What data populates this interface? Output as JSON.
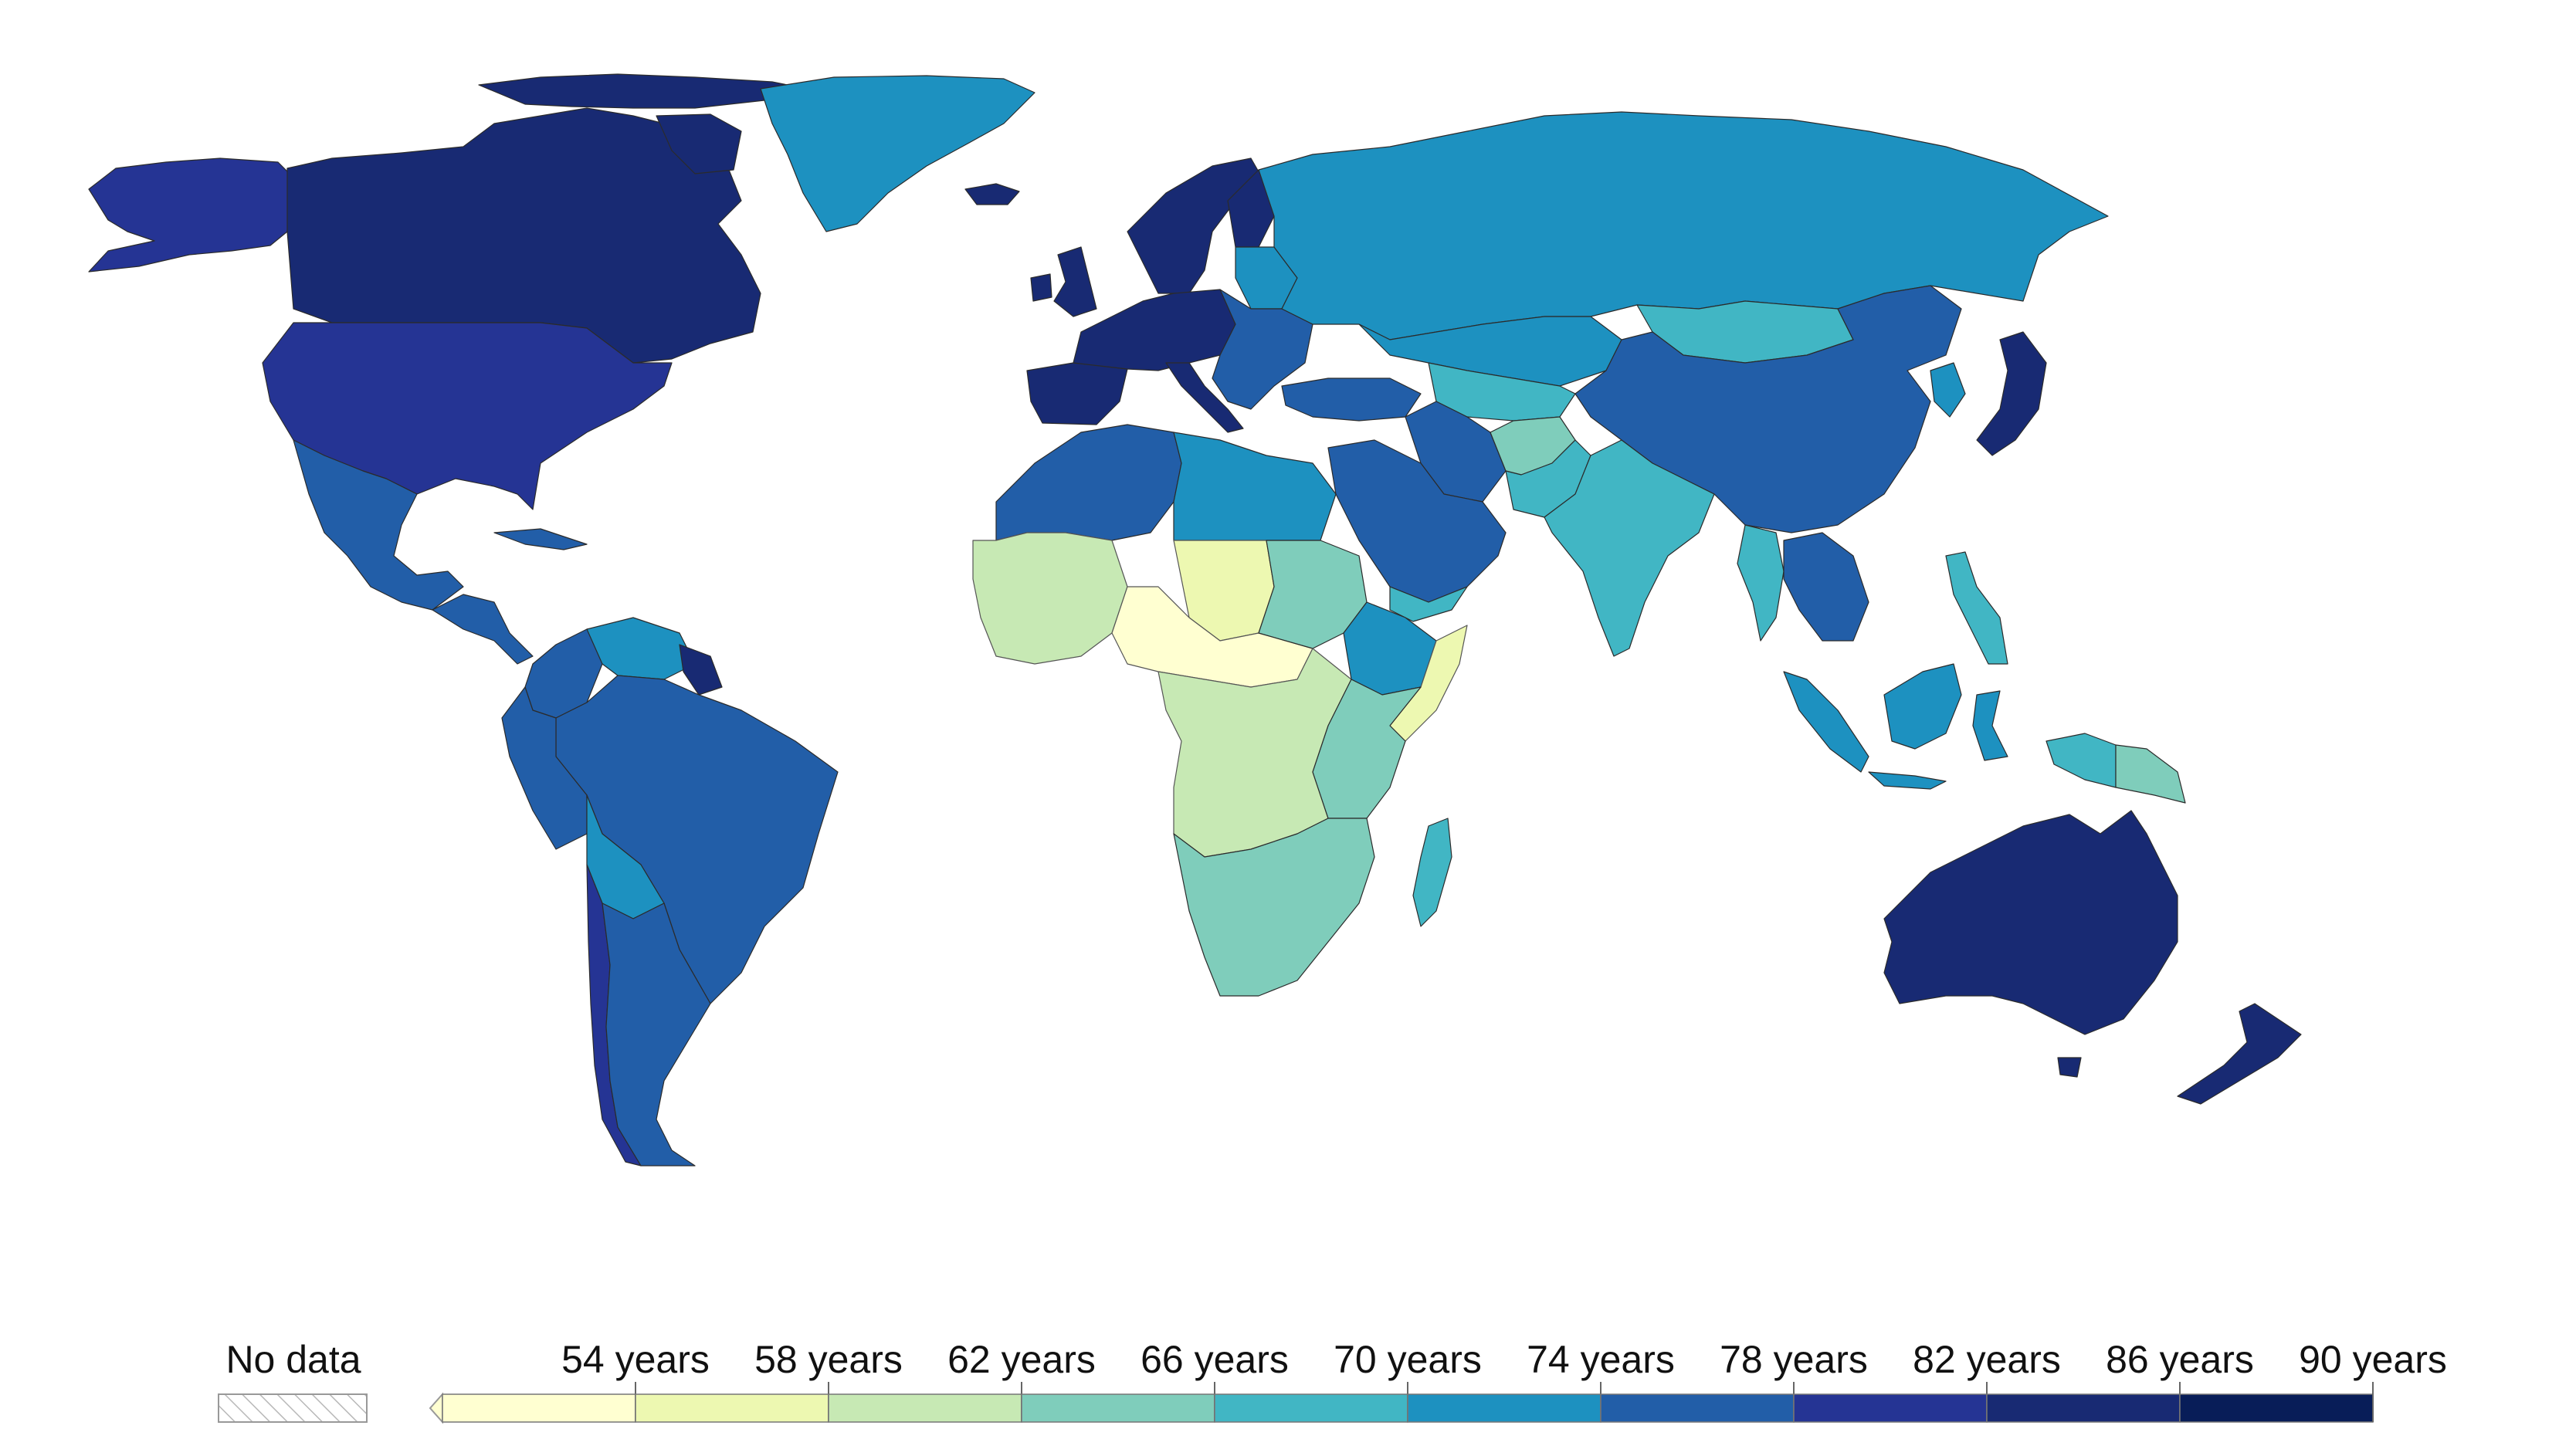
{
  "legend": {
    "no_data_label": "No data",
    "no_data_color": "#e8e8e8",
    "bins": [
      {
        "label": "54 years",
        "color": "#ffffd1"
      },
      {
        "label": "58 years",
        "color": "#edf8b1"
      },
      {
        "label": "62 years",
        "color": "#c7e9b4"
      },
      {
        "label": "66 years",
        "color": "#7fcdbb"
      },
      {
        "label": "70 years",
        "color": "#41b6c4"
      },
      {
        "label": "74 years",
        "color": "#1d91c0"
      },
      {
        "label": "78 years",
        "color": "#225ea8"
      },
      {
        "label": "82 years",
        "color": "#253494"
      },
      {
        "label": "86 years",
        "color": "#182a73"
      },
      {
        "label": "90 years",
        "color": "#081d58"
      }
    ]
  },
  "regions": [
    {
      "name": "canada",
      "color": "#182a73"
    },
    {
      "name": "alaska",
      "color": "#253494"
    },
    {
      "name": "united-states",
      "color": "#253494"
    },
    {
      "name": "greenland",
      "color": "#1d91c0"
    },
    {
      "name": "mexico",
      "color": "#225ea8"
    },
    {
      "name": "central-america",
      "color": "#225ea8"
    },
    {
      "name": "cuba",
      "color": "#225ea8"
    },
    {
      "name": "colombia",
      "color": "#225ea8"
    },
    {
      "name": "venezuela",
      "color": "#1d91c0"
    },
    {
      "name": "guiana",
      "color": "#182a73"
    },
    {
      "name": "brazil",
      "color": "#225ea8"
    },
    {
      "name": "peru",
      "color": "#225ea8"
    },
    {
      "name": "bolivia",
      "color": "#1d91c0"
    },
    {
      "name": "chile",
      "color": "#253494"
    },
    {
      "name": "argentina",
      "color": "#225ea8"
    },
    {
      "name": "iceland",
      "color": "#182a73"
    },
    {
      "name": "scandinavia",
      "color": "#182a73"
    },
    {
      "name": "finland",
      "color": "#182a73"
    },
    {
      "name": "uk",
      "color": "#182a73"
    },
    {
      "name": "ireland",
      "color": "#182a73"
    },
    {
      "name": "iberia",
      "color": "#182a73"
    },
    {
      "name": "western-europe",
      "color": "#182a73"
    },
    {
      "name": "italy",
      "color": "#182a73"
    },
    {
      "name": "eastern-europe",
      "color": "#225ea8"
    },
    {
      "name": "baltic-belarus",
      "color": "#1d91c0"
    },
    {
      "name": "russia",
      "color": "#1d91c0"
    },
    {
      "name": "kazakhstan",
      "color": "#1d91c0"
    },
    {
      "name": "mongolia",
      "color": "#41b6c4"
    },
    {
      "name": "china",
      "color": "#225ea8"
    },
    {
      "name": "japan",
      "color": "#182a73"
    },
    {
      "name": "korea",
      "color": "#1d91c0"
    },
    {
      "name": "turkey",
      "color": "#225ea8"
    },
    {
      "name": "central-asia",
      "color": "#41b6c4"
    },
    {
      "name": "iran",
      "color": "#225ea8"
    },
    {
      "name": "afghanistan",
      "color": "#7fcdbb"
    },
    {
      "name": "pakistan",
      "color": "#41b6c4"
    },
    {
      "name": "india",
      "color": "#41b6c4"
    },
    {
      "name": "arabia",
      "color": "#225ea8"
    },
    {
      "name": "yemen",
      "color": "#41b6c4"
    },
    {
      "name": "southeast-asia",
      "color": "#225ea8"
    },
    {
      "name": "myanmar",
      "color": "#41b6c4"
    },
    {
      "name": "philippines",
      "color": "#41b6c4"
    },
    {
      "name": "sumatra",
      "color": "#1d91c0"
    },
    {
      "name": "borneo",
      "color": "#1d91c0"
    },
    {
      "name": "new-guinea",
      "color": "#41b6c4"
    },
    {
      "name": "png",
      "color": "#7fcdbb"
    },
    {
      "name": "australia",
      "color": "#182a73"
    },
    {
      "name": "new-zealand",
      "color": "#182a73"
    },
    {
      "name": "north-africa",
      "color": "#225ea8"
    },
    {
      "name": "libya-egypt",
      "color": "#1d91c0"
    },
    {
      "name": "west-africa",
      "color": "#c7e9b4"
    },
    {
      "name": "sahel",
      "color": "#edf8b1"
    },
    {
      "name": "nigeria-car",
      "color": "#ffffd1"
    },
    {
      "name": "sudan",
      "color": "#7fcdbb"
    },
    {
      "name": "ethiopia",
      "color": "#1d91c0"
    },
    {
      "name": "somalia",
      "color": "#edf8b1"
    },
    {
      "name": "central-africa",
      "color": "#c7e9b4"
    },
    {
      "name": "east-africa",
      "color": "#7fcdbb"
    },
    {
      "name": "southern-africa",
      "color": "#7fcdbb"
    },
    {
      "name": "madagascar",
      "color": "#41b6c4"
    }
  ]
}
